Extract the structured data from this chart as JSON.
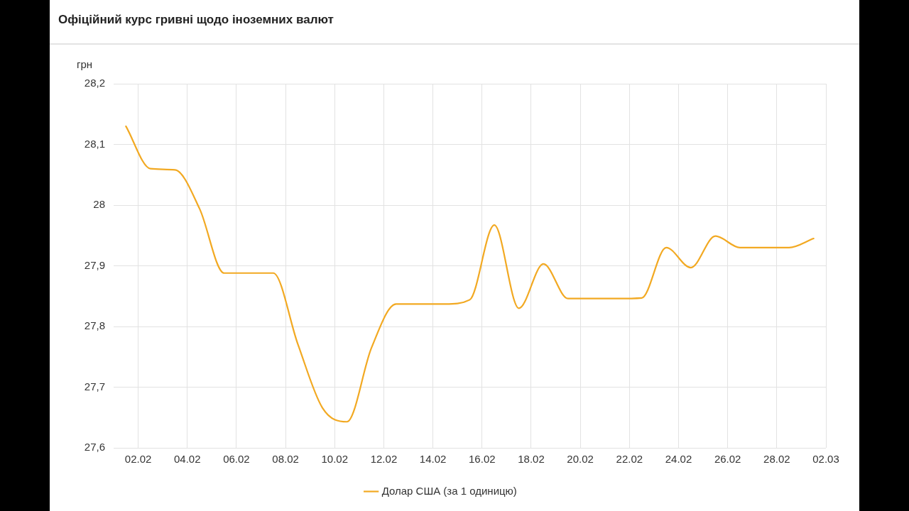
{
  "chart_data": {
    "type": "line",
    "title": "Офіційний курс гривні щодо іноземних валют",
    "ylabel": "грн",
    "x": [
      "--02-01T12:00",
      "--02-02T12:00",
      "--02-03T12:00",
      "--02-04T12:00",
      "--02-05T12:00",
      "--02-06T12:00",
      "--02-07T12:00",
      "--02-08T12:00",
      "--02-09T12:00",
      "--02-10T12:00",
      "--02-11T12:00",
      "--02-12T12:00",
      "--02-13T12:00",
      "--02-14T12:00",
      "--02-15T12:00",
      "--02-16T12:00",
      "--02-17T12:00",
      "--02-18T12:00",
      "--02-19T12:00",
      "--02-20T12:00",
      "--02-21T12:00",
      "--02-22T12:00",
      "--02-23T12:00",
      "--02-24T12:00",
      "--02-25T12:00",
      "--02-26T12:00",
      "--02-27T12:00",
      "--02-28T12:00",
      "--03-01T12:00"
    ],
    "series": [
      {
        "name": "Долар США (за 1 одиницю)",
        "color": "#f2a922",
        "values": [
          28.13,
          28.06,
          28.058,
          27.994,
          27.888,
          27.888,
          27.888,
          27.771,
          27.666,
          27.643,
          27.765,
          27.837,
          27.837,
          27.837,
          27.844,
          27.967,
          27.83,
          27.903,
          27.846,
          27.846,
          27.846,
          27.847,
          27.93,
          27.897,
          27.949,
          27.93,
          27.93,
          27.93,
          27.945
        ]
      }
    ],
    "xlim": [
      "--02-01",
      "--03-02"
    ],
    "xticks": [
      {
        "value": "--02-02",
        "label": "02.02"
      },
      {
        "value": "--02-04",
        "label": "04.02"
      },
      {
        "value": "--02-06",
        "label": "06.02"
      },
      {
        "value": "--02-08",
        "label": "08.02"
      },
      {
        "value": "--02-10",
        "label": "10.02"
      },
      {
        "value": "--02-12",
        "label": "12.02"
      },
      {
        "value": "--02-14",
        "label": "14.02"
      },
      {
        "value": "--02-16",
        "label": "16.02"
      },
      {
        "value": "--02-18",
        "label": "18.02"
      },
      {
        "value": "--02-20",
        "label": "20.02"
      },
      {
        "value": "--02-22",
        "label": "22.02"
      },
      {
        "value": "--02-24",
        "label": "24.02"
      },
      {
        "value": "--02-26",
        "label": "26.02"
      },
      {
        "value": "--02-28",
        "label": "28.02"
      },
      {
        "value": "--03-02",
        "label": "02.03"
      }
    ],
    "ylim": [
      27.6,
      28.2
    ],
    "yticks": [
      {
        "value": 27.6,
        "label": "27,6"
      },
      {
        "value": 27.7,
        "label": "27,7"
      },
      {
        "value": 27.8,
        "label": "27,8"
      },
      {
        "value": 27.9,
        "label": "27,9"
      },
      {
        "value": 28,
        "label": "28"
      },
      {
        "value": 28.1,
        "label": "28,1"
      },
      {
        "value": 28.2,
        "label": "28,2"
      }
    ],
    "grid": true,
    "legend": "bottom",
    "marker": "none",
    "line_style": "solid"
  }
}
